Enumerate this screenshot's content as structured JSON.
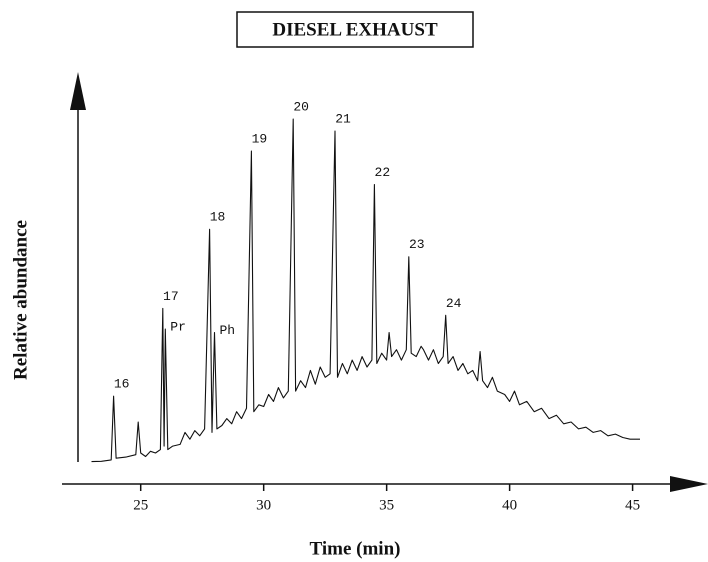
{
  "chart_data": {
    "type": "line",
    "title": "DIESEL EXHAUST",
    "x_label": "Time (min)",
    "y_label": "Relative abundance",
    "color": "#111111",
    "xlim": [
      21.8,
      47.7
    ],
    "ylim": [
      -6,
      107
    ],
    "xticks": [
      25,
      30,
      35,
      40,
      45
    ],
    "x": [
      23.0,
      23.4,
      23.8,
      23.9,
      24.0,
      24.4,
      24.8,
      24.9,
      25.0,
      25.2,
      25.4,
      25.6,
      25.8,
      25.9,
      25.95,
      26.0,
      26.1,
      26.3,
      26.6,
      26.8,
      27.0,
      27.2,
      27.4,
      27.6,
      27.8,
      27.9,
      28.0,
      28.1,
      28.3,
      28.5,
      28.7,
      28.9,
      29.1,
      29.3,
      29.5,
      29.6,
      29.8,
      30.0,
      30.2,
      30.4,
      30.6,
      30.8,
      31.0,
      31.2,
      31.3,
      31.5,
      31.7,
      31.9,
      32.1,
      32.3,
      32.5,
      32.7,
      32.9,
      33.0,
      33.2,
      33.4,
      33.6,
      33.8,
      34.0,
      34.2,
      34.4,
      34.5,
      34.6,
      34.8,
      35.0,
      35.1,
      35.2,
      35.4,
      35.6,
      35.8,
      35.9,
      36.0,
      36.2,
      36.4,
      36.5,
      36.7,
      36.9,
      37.1,
      37.3,
      37.4,
      37.5,
      37.7,
      37.9,
      38.1,
      38.3,
      38.5,
      38.7,
      38.8,
      38.9,
      39.1,
      39.3,
      39.5,
      39.8,
      40.0,
      40.2,
      40.4,
      40.7,
      41.0,
      41.3,
      41.6,
      41.9,
      42.2,
      42.5,
      42.8,
      43.1,
      43.4,
      43.7,
      44.0,
      44.3,
      44.6,
      44.9,
      45.3
    ],
    "values": [
      0.5,
      0.6,
      1,
      19.5,
      1.5,
      1.8,
      2.5,
      12,
      3,
      2,
      3.5,
      3,
      4,
      45,
      5,
      39,
      4,
      5,
      5.5,
      9,
      7,
      9.5,
      8,
      10,
      68,
      9,
      38,
      10,
      11,
      13,
      11.5,
      15,
      13,
      16,
      90.7,
      15,
      17,
      16.5,
      20,
      18,
      22,
      19,
      21,
      100,
      21,
      24,
      22,
      27,
      23,
      28,
      25,
      26,
      96.5,
      25,
      29,
      26,
      30,
      27,
      31,
      28,
      30,
      81,
      29,
      32,
      30,
      38,
      31,
      33,
      30,
      33,
      60,
      32,
      31,
      34,
      33,
      30,
      33,
      29,
      31,
      43,
      29,
      31,
      27,
      29,
      26,
      27,
      24,
      32.5,
      24,
      22,
      25,
      21,
      20,
      18,
      21,
      17,
      18,
      15,
      16,
      13,
      14,
      11.5,
      12,
      10,
      10.5,
      9,
      9.5,
      8,
      8.5,
      7.5,
      7,
      7
    ],
    "peaks": [
      {
        "label": "16",
        "x": 23.9
      },
      {
        "label": "17",
        "x": 25.9
      },
      {
        "label": "Pr",
        "x": 26.0,
        "anchor": "right"
      },
      {
        "label": "18",
        "x": 27.8
      },
      {
        "label": "Ph",
        "x": 28.0,
        "anchor": "right"
      },
      {
        "label": "19",
        "x": 29.5
      },
      {
        "label": "20",
        "x": 31.2
      },
      {
        "label": "21",
        "x": 32.9
      },
      {
        "label": "22",
        "x": 34.5
      },
      {
        "label": "23",
        "x": 35.9
      },
      {
        "label": "24",
        "x": 37.4
      }
    ]
  }
}
